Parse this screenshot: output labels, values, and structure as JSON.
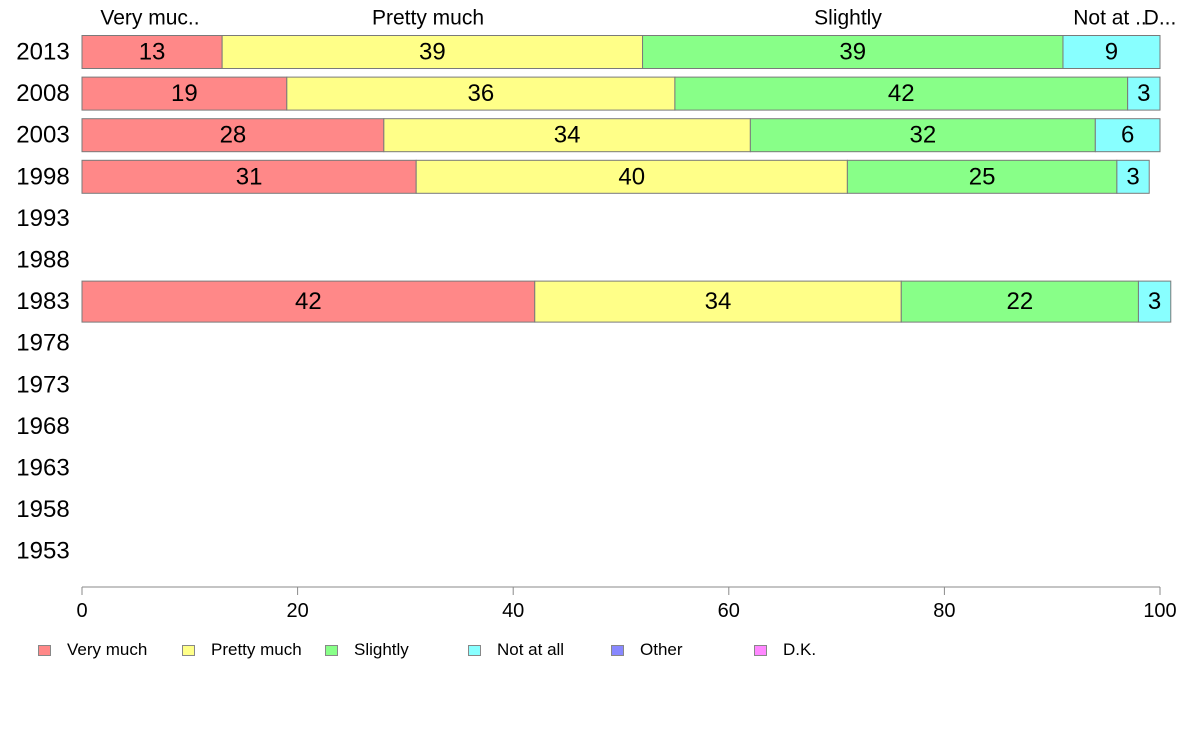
{
  "chart_data": {
    "type": "bar",
    "orientation": "horizontal",
    "stacked": true,
    "categories": [
      "2013",
      "2008",
      "2003",
      "1998",
      "1993",
      "1988",
      "1983",
      "1978",
      "1973",
      "1968",
      "1963",
      "1958",
      "1953"
    ],
    "series": [
      {
        "name": "Very much",
        "color": "#ff8888",
        "values": [
          13,
          19,
          28,
          31,
          null,
          null,
          42,
          null,
          null,
          null,
          null,
          null,
          null
        ]
      },
      {
        "name": "Pretty much",
        "color": "#ffff88",
        "values": [
          39,
          36,
          34,
          40,
          null,
          null,
          34,
          null,
          null,
          null,
          null,
          null,
          null
        ]
      },
      {
        "name": "Slightly",
        "color": "#88ff88",
        "values": [
          39,
          42,
          32,
          25,
          null,
          null,
          22,
          null,
          null,
          null,
          null,
          null,
          null
        ]
      },
      {
        "name": "Not at all",
        "color": "#88ffff",
        "values": [
          9,
          3,
          6,
          3,
          null,
          null,
          3,
          null,
          null,
          null,
          null,
          null,
          null
        ]
      },
      {
        "name": "Other",
        "color": "#8888ff",
        "values": [
          0,
          0,
          0,
          0,
          null,
          null,
          0,
          null,
          null,
          null,
          null,
          null,
          null
        ]
      },
      {
        "name": "D.K.",
        "color": "#ff88ff",
        "values": [
          0,
          0,
          0,
          0,
          null,
          null,
          0,
          null,
          null,
          null,
          null,
          null,
          null
        ]
      }
    ],
    "top_labels": [
      "Very muc..",
      "Pretty much",
      "Slightly",
      "Not at ..",
      "D..."
    ],
    "xlim": [
      0,
      100
    ],
    "xticks": [
      0,
      20,
      40,
      60,
      80,
      100
    ],
    "grid": false,
    "legend_position": "bottom"
  }
}
